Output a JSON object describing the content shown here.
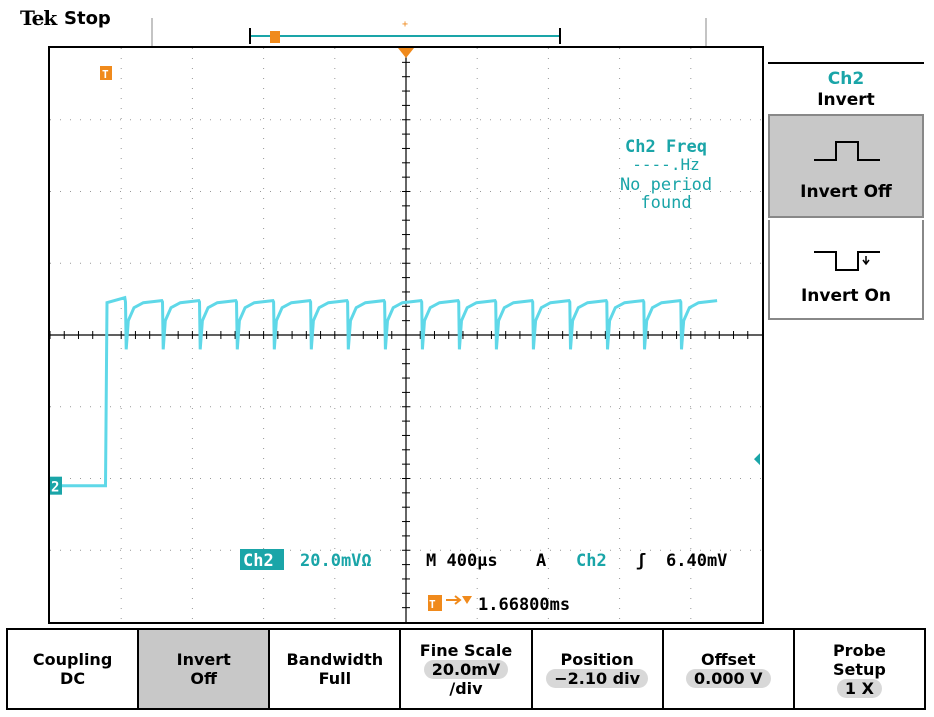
{
  "header": {
    "brand": "Tek",
    "status": "Stop"
  },
  "channel_readout": {
    "ch_label": "Ch2",
    "scale": "20.0mVΩ",
    "timebase": "M 400µs",
    "trigger_mode": "A",
    "trigger_source": "Ch2",
    "trigger_slope": "ʃ",
    "trigger_level": "6.40mV"
  },
  "trigger_position": {
    "marker": "T→▼",
    "value": "1.66800ms"
  },
  "measurement": {
    "line1": "Ch2 Freq",
    "line2": "----.Hz",
    "line3": "No period",
    "line4": "found"
  },
  "markers": {
    "ch2": "2",
    "trigger": "T"
  },
  "side_menu": {
    "title_channel": "Ch2",
    "title_function": "Invert",
    "invert_off_label": "Invert Off",
    "invert_on_label": "Invert On"
  },
  "bottom_menu": [
    {
      "line1": "Coupling",
      "line2": "DC"
    },
    {
      "line1": "Invert",
      "line2": "Off"
    },
    {
      "line1": "Bandwidth",
      "line2": "Full"
    },
    {
      "line1": "Fine Scale",
      "line2": "20.0mV",
      "line3": "/div"
    },
    {
      "line1": "Position",
      "line2": "−2.10 div"
    },
    {
      "line1": "Offset",
      "line2": "0.000 V"
    },
    {
      "line1": "Probe",
      "line2": "Setup",
      "line3": "1 X"
    }
  ],
  "colors": {
    "trace": "#5fd8e8",
    "accent": "#1aa5a8",
    "trigger": "#f08a1c",
    "panel_active": "#c8c8c8"
  }
}
